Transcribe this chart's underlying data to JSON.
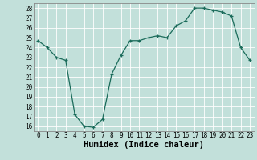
{
  "x": [
    0,
    1,
    2,
    3,
    4,
    5,
    6,
    7,
    8,
    9,
    10,
    11,
    12,
    13,
    14,
    15,
    16,
    17,
    18,
    19,
    20,
    21,
    22,
    23
  ],
  "y": [
    24.7,
    24.0,
    23.0,
    22.7,
    17.2,
    16.0,
    15.9,
    16.7,
    21.3,
    23.2,
    24.7,
    24.7,
    25.0,
    25.2,
    25.0,
    26.2,
    26.7,
    28.0,
    28.0,
    27.8,
    27.6,
    27.2,
    24.0,
    22.7
  ],
  "xlabel": "Humidex (Indice chaleur)",
  "xlim": [
    -0.5,
    23.5
  ],
  "ylim": [
    15.5,
    28.5
  ],
  "yticks": [
    16,
    17,
    18,
    19,
    20,
    21,
    22,
    23,
    24,
    25,
    26,
    27,
    28
  ],
  "xticks": [
    0,
    1,
    2,
    3,
    4,
    5,
    6,
    7,
    8,
    9,
    10,
    11,
    12,
    13,
    14,
    15,
    16,
    17,
    18,
    19,
    20,
    21,
    22,
    23
  ],
  "line_color": "#1a6b5a",
  "marker_color": "#1a6b5a",
  "bg_color": "#c2e0da",
  "grid_color": "#ffffff",
  "tick_fontsize": 5.5,
  "xlabel_fontsize": 7.5,
  "spine_color": "#888888"
}
